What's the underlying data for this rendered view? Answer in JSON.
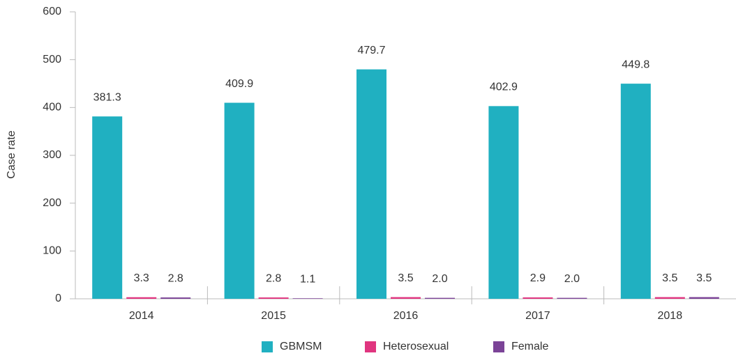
{
  "chart_data": {
    "type": "bar",
    "y_label": "Case rate",
    "categories": [
      "2014",
      "2015",
      "2016",
      "2017",
      "2018"
    ],
    "series": [
      {
        "name": "GBMSM",
        "color": "#20b0c1",
        "values": [
          381.3,
          409.9,
          479.7,
          402.9,
          449.8
        ],
        "value_labels": [
          "381.3",
          "409.9",
          "479.7",
          "402.9",
          "449.8"
        ]
      },
      {
        "name": "Heterosexual",
        "color": "#e0357f",
        "values": [
          3.3,
          2.8,
          3.5,
          2.9,
          3.5
        ],
        "value_labels": [
          "3.3",
          "2.8",
          "3.5",
          "2.9",
          "3.5"
        ]
      },
      {
        "name": "Female",
        "color": "#7b4397",
        "values": [
          2.8,
          1.1,
          2.0,
          2.0,
          3.5
        ],
        "value_labels": [
          "2.8",
          "1.1",
          "2.0",
          "2.0",
          "3.5"
        ]
      }
    ],
    "ylim": [
      0,
      600
    ],
    "yticks": [
      0,
      100,
      200,
      300,
      400,
      500,
      600
    ],
    "grid": false,
    "legend": "bottom"
  }
}
